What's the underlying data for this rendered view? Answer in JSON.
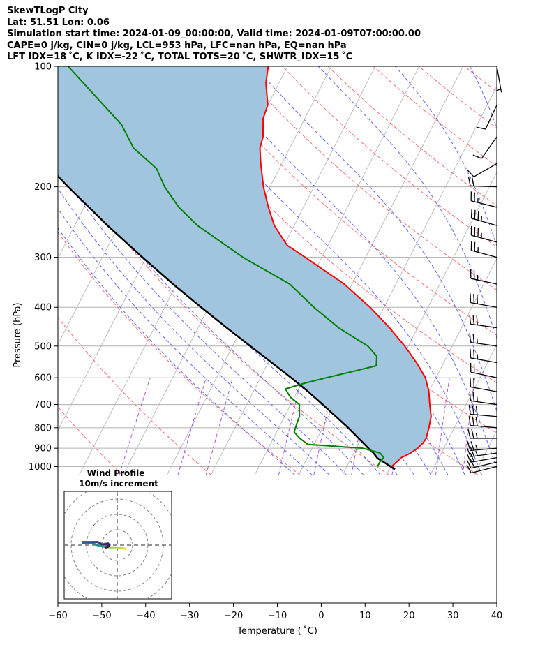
{
  "header": {
    "title": "SkewTLogP City",
    "latlon": "Lat: 51.51   Lon: 0.06",
    "sim_times": "Simulation start time: 2024-01-09_00:00:00, Valid time: 2024-01-09T07:00:00.00",
    "indices1": "CAPE=0 j/kg, CIN=0 j/kg, LCL=953 hPa, LFC=nan hPa, EQ=nan hPa",
    "indices2": "LFT IDX=18 ˚C, K IDX=-22 ˚C, TOTAL TOTS=20 ˚C, SHWTR_IDX=15 ˚C"
  },
  "colors": {
    "temperature": "#ff0000",
    "dewpoint": "#008000",
    "parcel": "#000000",
    "cin_shade": "#a2c5df",
    "dry_adiabat": "#ff6a6a",
    "moist_adiabat": "#5a6af5",
    "mixing_ratio": "#9a2bd0",
    "isotherm": "#b0b0b0"
  },
  "chart_data": {
    "type": "line",
    "subtype": "skew-T log-P",
    "xlabel": "Temperature ( ˚C)",
    "ylabel": "Pressure (hPa)",
    "xlim": [
      -60,
      40
    ],
    "ylim": [
      1050,
      100
    ],
    "y_scale": "log",
    "xticks": [
      -60,
      -50,
      -40,
      -30,
      -20,
      -10,
      0,
      10,
      20,
      30,
      40
    ],
    "xtick_labels": [
      "−60",
      "−50",
      "−40",
      "−30",
      "−20",
      "−10",
      "0",
      "10",
      "20",
      "30",
      "40"
    ],
    "yticks": [
      1000,
      900,
      800,
      700,
      600,
      500,
      400,
      300,
      200,
      100
    ],
    "grid": true,
    "series": [
      {
        "role": "temperature",
        "color": "#ff0000",
        "pressure": [
          1000,
          975,
          950,
          925,
          900,
          875,
          850,
          800,
          750,
          700,
          650,
          600,
          550,
          500,
          450,
          400,
          350,
          300,
          280,
          250,
          225,
          200,
          175,
          160,
          150,
          135,
          125,
          110,
          100
        ],
        "values": [
          0.2,
          0.8,
          1.4,
          3.0,
          4.0,
          4.6,
          4.8,
          4.2,
          3.4,
          1.7,
          0.0,
          -2.4,
          -6.2,
          -10.8,
          -16.4,
          -23.2,
          -31.8,
          -43.8,
          -49.3,
          -54.5,
          -58.0,
          -61.5,
          -64.8,
          -66.8,
          -67.4,
          -69.5,
          -70.0,
          -73.0,
          -74.4
        ]
      },
      {
        "role": "dewpoint",
        "color": "#008000",
        "pressure": [
          1000,
          975,
          950,
          925,
          900,
          880,
          850,
          820,
          780,
          750,
          700,
          670,
          640,
          620,
          600,
          580,
          560,
          530,
          500,
          450,
          400,
          350,
          300,
          250,
          225,
          200,
          180,
          160,
          140,
          100
        ],
        "values": [
          -3.0,
          -3.0,
          -2.6,
          -4.0,
          -8.5,
          -21.5,
          -24.0,
          -26.0,
          -26.4,
          -26.6,
          -28.0,
          -31.0,
          -33.0,
          -29.5,
          -25.0,
          -20.0,
          -15.0,
          -16.0,
          -19.2,
          -28.0,
          -36.0,
          -44.2,
          -58.0,
          -72.0,
          -78.4,
          -84.0,
          -88.0,
          -95.6,
          -101.0,
          -120.0
        ]
      },
      {
        "role": "parcel",
        "color": "#000000",
        "pressure": [
          1015,
          1000,
          975,
          953,
          925,
          900,
          850,
          800,
          750,
          700,
          650,
          600,
          550,
          500,
          450,
          400,
          350,
          300,
          250,
          200,
          175,
          150,
          125,
          100
        ],
        "values": [
          1.3,
          0.0,
          -2.1,
          -4.0,
          -5.5,
          -7.2,
          -10.6,
          -14.2,
          -18.3,
          -22.7,
          -27.5,
          -33.0,
          -39.2,
          -46.0,
          -53.5,
          -61.7,
          -70.8,
          -80.9,
          -92.5,
          -106.0,
          -113.8,
          -122.4,
          -132.3,
          -144.0
        ]
      }
    ],
    "shaded_region": {
      "between": [
        "temperature",
        "parcel"
      ],
      "label": "CIN",
      "color": "#a2c5df"
    },
    "dry_adiabats_theta_K": [
      210,
      230,
      250,
      270,
      290,
      310,
      330,
      350,
      370,
      390,
      410,
      430,
      450,
      470,
      490,
      510,
      530,
      550
    ],
    "moist_adiabats_thetaw_C": [
      -24,
      -20,
      -16,
      -12,
      -8,
      -4,
      0,
      4,
      8,
      12,
      16,
      20,
      24,
      28,
      32,
      36,
      40,
      44
    ],
    "mixing_ratio_lines_gkg": [
      0.01,
      0.05,
      0.1,
      0.5,
      1,
      2,
      4,
      8,
      12
    ],
    "wind_barbs": {
      "pressure": [
        1000,
        975,
        950,
        925,
        900,
        850,
        800,
        750,
        700,
        650,
        600,
        550,
        500,
        450,
        400,
        350,
        300,
        275,
        250,
        225,
        200,
        175,
        150,
        125,
        100
      ],
      "speed_kt": [
        9,
        18,
        22,
        24,
        25,
        27,
        29,
        29,
        24,
        22,
        22,
        24,
        27,
        29,
        29,
        24,
        24,
        33,
        33,
        27,
        18,
        8,
        9,
        8,
        6
      ],
      "direction_deg": [
        256,
        257,
        260,
        262,
        265,
        270,
        275,
        275,
        278,
        280,
        282,
        280,
        278,
        278,
        280,
        282,
        285,
        285,
        286,
        284,
        272,
        240,
        215,
        205,
        170
      ]
    },
    "hodograph": {
      "title": "Wind Profile",
      "subtitle": "10m/s increment",
      "ring_increment_ms": 10,
      "u_ms": [
        5.5,
        5.0,
        4.0,
        2.5,
        0.5,
        -2.0,
        -4.5,
        -7.0,
        -9.0,
        -9.5,
        -8.0,
        -6.5,
        -5.5,
        -6.0,
        -8.0,
        -10.5,
        -13.0,
        -15.5,
        -18.0,
        -20.0,
        -21.5,
        -22.5,
        -22.5,
        -21.0,
        -18.5,
        -15.5,
        -13.0,
        -11.5,
        -10.0,
        -7.5,
        -6.0,
        -5.0,
        -6.0,
        -7.5
      ],
      "v_ms": [
        -2.5,
        -2.4,
        -2.0,
        -2.0,
        -1.5,
        -1.5,
        -1.5,
        -1.5,
        -1.0,
        0.0,
        1.0,
        1.0,
        0.0,
        -0.5,
        -1.0,
        -0.5,
        0.0,
        1.0,
        1.5,
        1.5,
        1.5,
        1.5,
        2.0,
        2.0,
        2.0,
        2.0,
        2.0,
        1.5,
        0.5,
        0.5,
        1.0,
        0.0,
        -1.0,
        -1.5
      ],
      "colormap": "viridis (top of profile = dark purple, surface = yellow)"
    }
  }
}
